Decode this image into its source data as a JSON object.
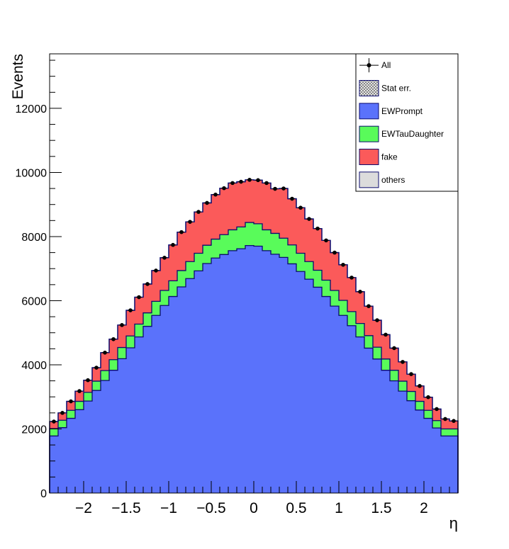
{
  "chart_data": {
    "type": "area",
    "stacked": true,
    "xlabel": "η",
    "ylabel": "Events",
    "xlim": [
      -2.4,
      2.4
    ],
    "ylim": [
      0,
      13700
    ],
    "grid": false,
    "legend_position": "top-right",
    "x_ticks": [
      -2,
      -1.5,
      -1,
      -0.5,
      0,
      0.5,
      1,
      1.5,
      2
    ],
    "x_tick_labels": [
      "−2",
      "−1.5",
      "−1",
      "−0.5",
      "0",
      "0.5",
      "1",
      "1.5",
      "2"
    ],
    "y_ticks": [
      0,
      2000,
      4000,
      6000,
      8000,
      10000,
      12000
    ],
    "y_tick_labels": [
      "0",
      "2000",
      "4000",
      "6000",
      "8000",
      "10000",
      "12000"
    ],
    "bin_edges": [
      -2.4,
      -2.3,
      -2.2,
      -2.1,
      -2.0,
      -1.9,
      -1.8,
      -1.7,
      -1.6,
      -1.5,
      -1.4,
      -1.3,
      -1.2,
      -1.1,
      -1.0,
      -0.9,
      -0.8,
      -0.7,
      -0.6,
      -0.5,
      -0.4,
      -0.3,
      -0.2,
      -0.1,
      0.0,
      0.1,
      0.2,
      0.3,
      0.4,
      0.5,
      0.6,
      0.7,
      0.8,
      0.9,
      1.0,
      1.1,
      1.2,
      1.3,
      1.4,
      1.5,
      1.6,
      1.7,
      1.8,
      1.9,
      2.0,
      2.1,
      2.2,
      2.3,
      2.4
    ],
    "series": [
      {
        "name": "EWPrompt",
        "color": "#5a72fb",
        "values": [
          1780,
          2040,
          2330,
          2600,
          2870,
          3200,
          3510,
          3830,
          4190,
          4530,
          4870,
          5200,
          5540,
          5850,
          6130,
          6430,
          6690,
          6930,
          7160,
          7330,
          7440,
          7560,
          7620,
          7720,
          7700,
          7560,
          7450,
          7350,
          7150,
          6910,
          6670,
          6420,
          6130,
          5830,
          5540,
          5220,
          4870,
          4520,
          4180,
          3830,
          3500,
          3180,
          2880,
          2590,
          2330,
          2030,
          1780,
          1780
        ]
      },
      {
        "name": "EWTauDaughter",
        "color": "#59fb5a",
        "values": [
          230,
          230,
          250,
          260,
          270,
          290,
          310,
          330,
          350,
          370,
          400,
          420,
          440,
          470,
          490,
          510,
          530,
          550,
          570,
          590,
          620,
          650,
          680,
          720,
          700,
          650,
          650,
          600,
          590,
          570,
          550,
          530,
          510,
          490,
          470,
          440,
          420,
          390,
          370,
          350,
          330,
          310,
          290,
          270,
          250,
          230,
          220,
          220
        ]
      },
      {
        "name": "fake",
        "color": "#fb5a5a",
        "values": [
          220,
          230,
          280,
          320,
          380,
          420,
          560,
          640,
          700,
          800,
          840,
          900,
          960,
          1020,
          1120,
          1200,
          1240,
          1290,
          1320,
          1390,
          1450,
          1460,
          1410,
          1330,
          1360,
          1460,
          1390,
          1550,
          1440,
          1420,
          1330,
          1300,
          1240,
          1180,
          1110,
          1060,
          990,
          920,
          840,
          760,
          690,
          600,
          540,
          480,
          410,
          360,
          310,
          250
        ]
      },
      {
        "name": "others",
        "color": "#dcdcdc",
        "values": [
          0,
          0,
          0,
          0,
          0,
          0,
          0,
          0,
          0,
          0,
          0,
          0,
          0,
          0,
          0,
          0,
          0,
          0,
          0,
          0,
          0,
          0,
          0,
          0,
          0,
          0,
          0,
          0,
          0,
          0,
          0,
          0,
          0,
          0,
          0,
          0,
          0,
          0,
          0,
          0,
          0,
          0,
          0,
          0,
          0,
          0,
          0,
          0
        ]
      }
    ],
    "data_points": {
      "name": "All",
      "values": [
        2230,
        2500,
        2860,
        3180,
        3520,
        3910,
        4380,
        4800,
        5240,
        5700,
        6110,
        6520,
        6940,
        7340,
        7740,
        8140,
        8460,
        8770,
        9050,
        9310,
        9510,
        9670,
        9710,
        9770,
        9760,
        9670,
        9490,
        9500,
        9180,
        8900,
        8550,
        8250,
        7880,
        7500,
        7120,
        6720,
        6280,
        5830,
        5390,
        4940,
        4520,
        4090,
        3710,
        3340,
        2990,
        2620,
        2310,
        2250
      ]
    },
    "legend": [
      {
        "label": "All",
        "style": "marker"
      },
      {
        "label": "Stat err.",
        "style": "hatched",
        "color": "#888888"
      },
      {
        "label": "EWPrompt",
        "style": "fill",
        "color": "#5a72fb"
      },
      {
        "label": "EWTauDaughter",
        "style": "fill",
        "color": "#59fb5a"
      },
      {
        "label": "fake",
        "style": "fill",
        "color": "#fb5a5a"
      },
      {
        "label": "others",
        "style": "fill",
        "color": "#dcdcdc"
      }
    ],
    "frame_color": "#000000",
    "edge_color": "#0b0b6e"
  }
}
